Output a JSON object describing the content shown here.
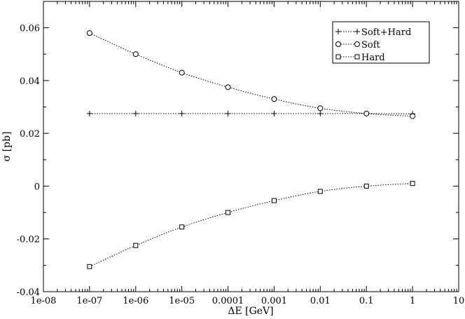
{
  "chart_data": {
    "type": "line",
    "x_scale": "log",
    "xlabel": "ΔE [GeV]",
    "ylabel": "σ [pb]",
    "xlim": [
      1e-08,
      10
    ],
    "ylim": [
      -0.04,
      0.07
    ],
    "grid": false,
    "legend_position": "top-right",
    "x_ticks": [
      {
        "value": 1e-08,
        "label": "1e-08"
      },
      {
        "value": 1e-07,
        "label": "1e-07"
      },
      {
        "value": 1e-06,
        "label": "1e-06"
      },
      {
        "value": 1e-05,
        "label": "1e-05"
      },
      {
        "value": 0.0001,
        "label": "0.0001"
      },
      {
        "value": 0.001,
        "label": "0.001"
      },
      {
        "value": 0.01,
        "label": "0.01"
      },
      {
        "value": 0.1,
        "label": "0.1"
      },
      {
        "value": 1,
        "label": "1"
      },
      {
        "value": 10,
        "label": "10"
      }
    ],
    "y_ticks": [
      {
        "value": -0.04,
        "label": "-0.04"
      },
      {
        "value": -0.02,
        "label": "-0.02"
      },
      {
        "value": 0,
        "label": "0"
      },
      {
        "value": 0.02,
        "label": "0.02"
      },
      {
        "value": 0.04,
        "label": "0.04"
      },
      {
        "value": 0.06,
        "label": "0.06"
      }
    ],
    "x": [
      1e-07,
      1e-06,
      1e-05,
      0.0001,
      0.001,
      0.01,
      0.1,
      1
    ],
    "series": [
      {
        "name": "Soft+Hard",
        "marker": "plus",
        "values": [
          0.0275,
          0.0275,
          0.0275,
          0.0275,
          0.0275,
          0.0275,
          0.0275,
          0.0274
        ]
      },
      {
        "name": "Soft",
        "marker": "circle",
        "values": [
          0.058,
          0.05,
          0.043,
          0.0375,
          0.033,
          0.0295,
          0.0275,
          0.0265
        ]
      },
      {
        "name": "Hard",
        "marker": "square",
        "values": [
          -0.0305,
          -0.0225,
          -0.0155,
          -0.01,
          -0.0055,
          -0.002,
          0.0,
          0.001
        ]
      }
    ]
  }
}
